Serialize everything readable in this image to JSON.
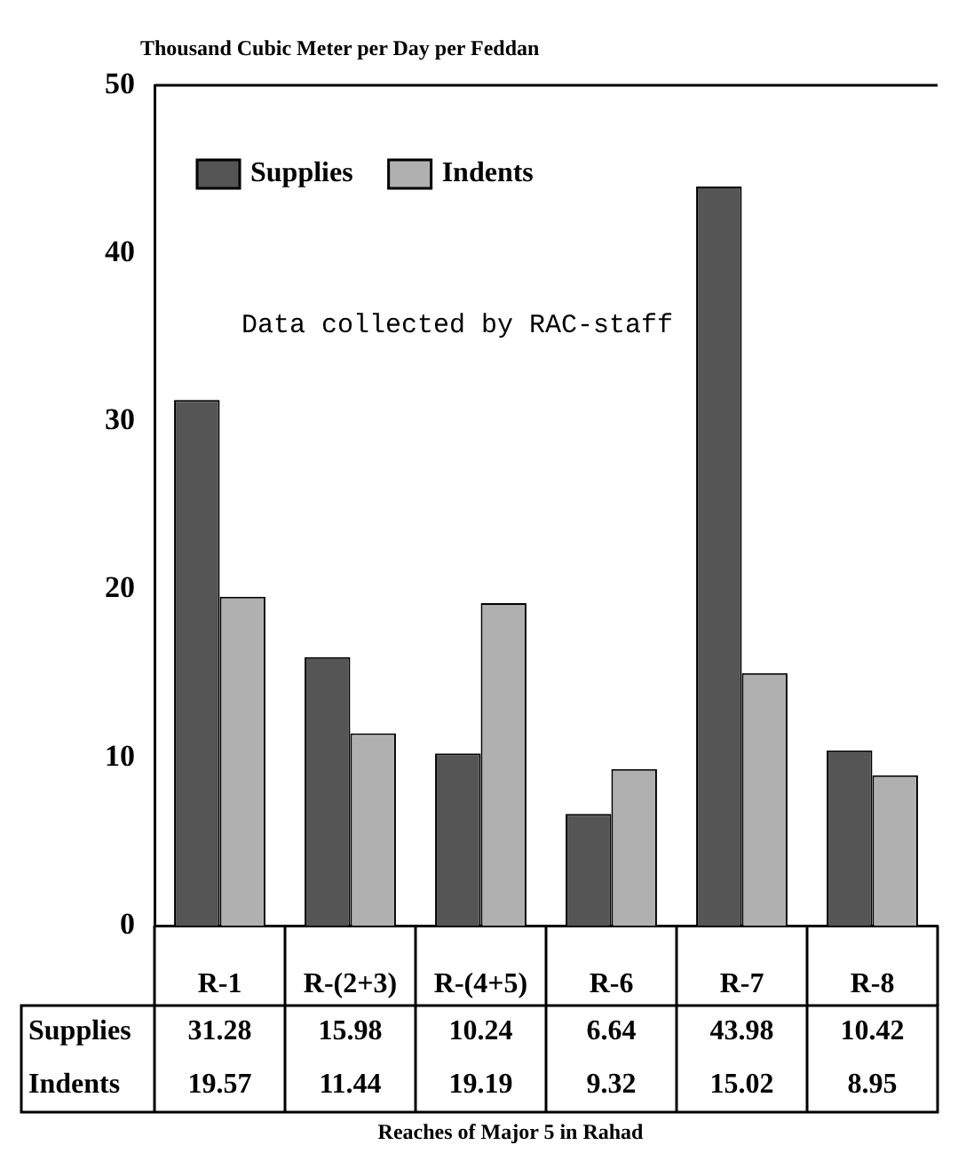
{
  "chart_data": {
    "type": "bar",
    "ylabel": "Thousand Cubic Meter per Day per Feddan",
    "categories": [
      "R-1",
      "R-(2+3)",
      "R-(4+5)",
      "R-6",
      "R-7",
      "R-8"
    ],
    "series": [
      {
        "name": "Supplies",
        "color": "#555555",
        "values": [
          31.28,
          15.98,
          10.24,
          6.64,
          43.98,
          10.42
        ]
      },
      {
        "name": "Indents",
        "color": "#b0b0b0",
        "values": [
          19.57,
          11.44,
          19.19,
          9.32,
          15.02,
          8.95
        ]
      }
    ],
    "ylim": [
      0,
      50
    ],
    "yticks": [
      0,
      10,
      20,
      30,
      40,
      50
    ],
    "legend": "top left",
    "data_labels": true,
    "annotations": [
      "Data collected by RAC-staff",
      "Reaches of Major 5 in Rahad"
    ]
  }
}
